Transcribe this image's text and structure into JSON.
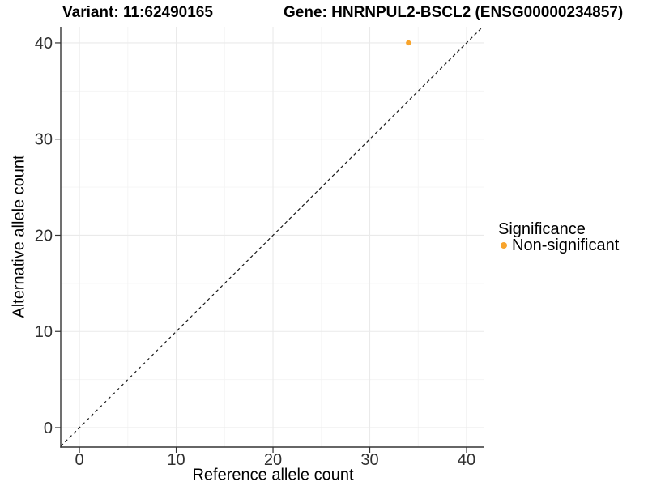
{
  "chart_data": {
    "type": "scatter",
    "title_left": "Variant: 11:62490165",
    "title_right": "Gene: HNRNPUL2-BSCL2 (ENSG00000234857)",
    "xlabel": "Reference allele count",
    "ylabel": "Alternative allele count",
    "xlim": [
      -1.93,
      41.84
    ],
    "ylim": [
      -2.02,
      41.68
    ],
    "x_ticks": [
      0,
      10,
      20,
      30,
      40
    ],
    "y_ticks": [
      0,
      10,
      20,
      30,
      40
    ],
    "x_minor_ticks": [
      5,
      15,
      25,
      35
    ],
    "y_minor_ticks": [
      5,
      15,
      25,
      35
    ],
    "grid": "major+minor, white panel background",
    "identity_line": {
      "equation": "y = x",
      "style": "dashed",
      "color": "#1A1A1A"
    },
    "series": [
      {
        "name": "Non-significant",
        "color": "#F8A42C",
        "point_radius": 3.2,
        "points": [
          [
            34,
            40
          ]
        ]
      }
    ],
    "legend": {
      "title": "Significance",
      "position": "right",
      "items": [
        {
          "label": "Non-significant",
          "color": "#F8A42C"
        }
      ]
    }
  }
}
